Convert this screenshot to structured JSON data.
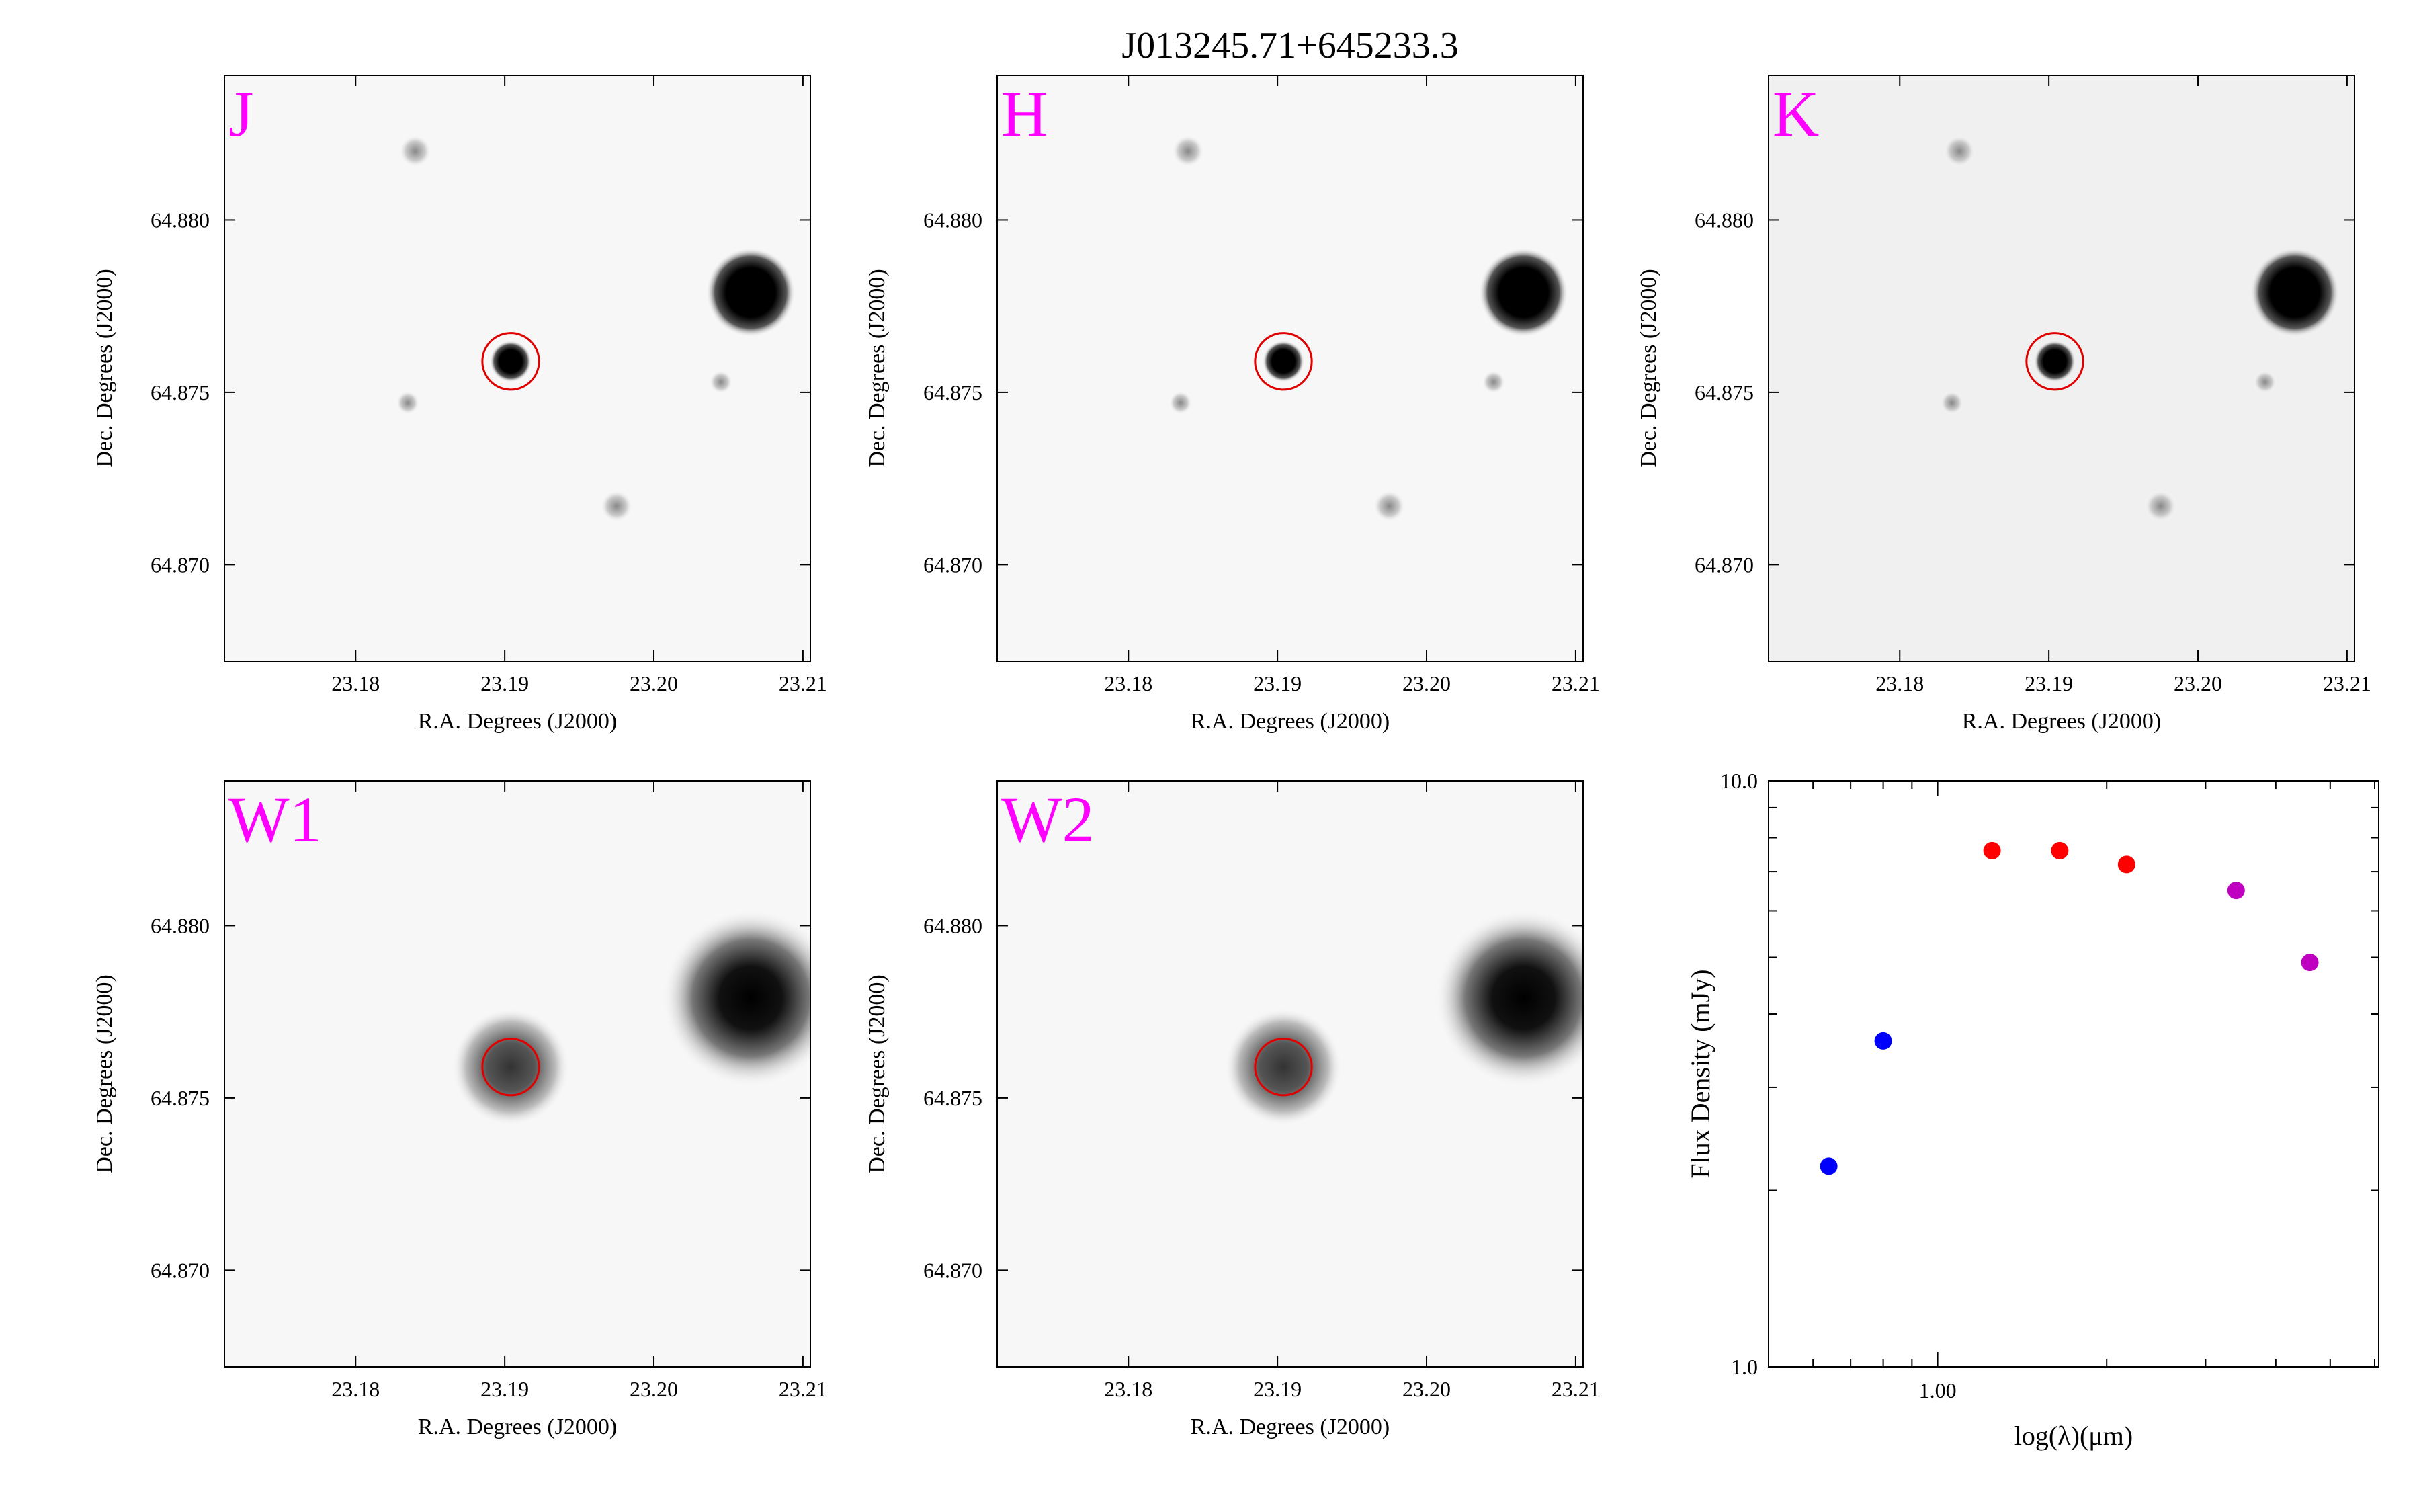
{
  "figure": {
    "title": "J013245.71+645233.3"
  },
  "colors": {
    "band_label": "#ff00ff",
    "aperture": "#e00000",
    "twomass_points": "#ff0000",
    "optical_points": "#0000ff",
    "wise_points": "#c000c0"
  },
  "cutouts": [
    {
      "band": "J",
      "xlabel": "R.A. Degrees (J2000)",
      "ylabel": "Dec. Degrees (J2000)",
      "xticks": [
        "23.18",
        "23.19",
        "23.20",
        "23.21"
      ],
      "yticks": [
        "64.880",
        "64.875",
        "64.870"
      ],
      "x_range": [
        23.1712,
        23.2105
      ],
      "y_range": [
        64.8672,
        64.8842
      ],
      "aperture": {
        "ra": 23.1904,
        "dec": 64.8759,
        "radius_deg": 0.0019
      }
    },
    {
      "band": "H",
      "xlabel": "R.A. Degrees (J2000)",
      "ylabel": "Dec. Degrees (J2000)",
      "xticks": [
        "23.18",
        "23.19",
        "23.20",
        "23.21"
      ],
      "yticks": [
        "64.880",
        "64.875",
        "64.870"
      ],
      "x_range": [
        23.1712,
        23.2105
      ],
      "y_range": [
        64.8672,
        64.8842
      ],
      "aperture": {
        "ra": 23.1904,
        "dec": 64.8759,
        "radius_deg": 0.0019
      }
    },
    {
      "band": "K",
      "xlabel": "R.A. Degrees (J2000)",
      "ylabel": "Dec. Degrees (J2000)",
      "xticks": [
        "23.18",
        "23.19",
        "23.20",
        "23.21"
      ],
      "yticks": [
        "64.880",
        "64.875",
        "64.870"
      ],
      "x_range": [
        23.1712,
        23.2105
      ],
      "y_range": [
        64.8672,
        64.8842
      ],
      "aperture": {
        "ra": 23.1904,
        "dec": 64.8759,
        "radius_deg": 0.0019
      }
    },
    {
      "band": "W1",
      "xlabel": "R.A. Degrees (J2000)",
      "ylabel": "Dec. Degrees (J2000)",
      "xticks": [
        "23.18",
        "23.19",
        "23.20",
        "23.21"
      ],
      "yticks": [
        "64.880",
        "64.875",
        "64.870"
      ],
      "x_range": [
        23.1712,
        23.2105
      ],
      "y_range": [
        64.8672,
        64.8842
      ],
      "aperture": {
        "ra": 23.1904,
        "dec": 64.8759,
        "radius_deg": 0.0019
      }
    },
    {
      "band": "W2",
      "xlabel": "R.A. Degrees (J2000)",
      "ylabel": "Dec. Degrees (J2000)",
      "xticks": [
        "23.18",
        "23.19",
        "23.20",
        "23.21"
      ],
      "yticks": [
        "64.880",
        "64.875",
        "64.870"
      ],
      "x_range": [
        23.1712,
        23.2105
      ],
      "y_range": [
        64.8672,
        64.8842
      ],
      "aperture": {
        "ra": 23.1904,
        "dec": 64.8759,
        "radius_deg": 0.0019
      }
    }
  ],
  "chart_data": {
    "type": "scatter",
    "title": "",
    "xlabel": "log(λ)(μm)",
    "ylabel": "Flux Density (mJy)",
    "x_scale": "log",
    "y_scale": "log",
    "xlim": [
      0.5,
      6.1
    ],
    "ylim": [
      1.0,
      10.0
    ],
    "xticks": [
      "1.00"
    ],
    "yticks": [
      "10.0",
      "1.0"
    ],
    "series": [
      {
        "color": "blue",
        "points": [
          {
            "x": 0.64,
            "y": 2.2
          },
          {
            "x": 0.8,
            "y": 3.6
          }
        ]
      },
      {
        "color": "red",
        "points": [
          {
            "x": 1.25,
            "y": 7.6,
            "yerr": 0.15
          },
          {
            "x": 1.65,
            "y": 7.6,
            "yerr": 0.2
          },
          {
            "x": 2.17,
            "y": 7.2,
            "yerr": 0.15
          }
        ]
      },
      {
        "color": "purple",
        "points": [
          {
            "x": 3.4,
            "y": 6.5
          },
          {
            "x": 4.6,
            "y": 4.9
          }
        ]
      }
    ]
  }
}
